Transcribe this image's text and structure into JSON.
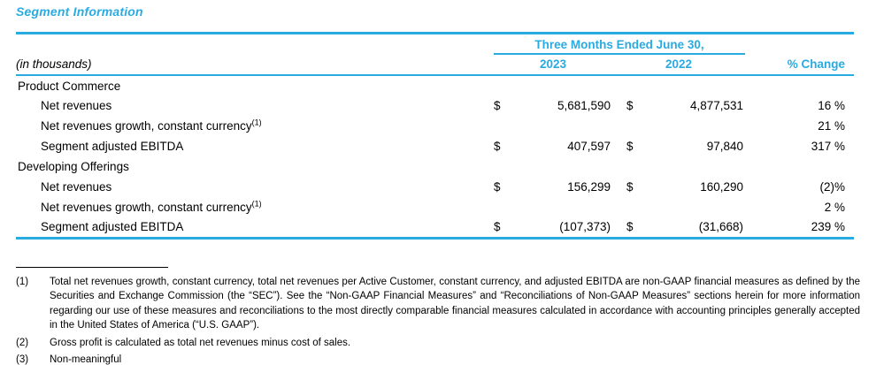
{
  "title": "Segment Information",
  "accent_color": "#29ABE2",
  "table": {
    "in_thousands": "(in thousands)",
    "period_header": "Three Months Ended June 30,",
    "columns": {
      "y2023": "2023",
      "y2022": "2022",
      "change": "% Change"
    },
    "rows": [
      {
        "type": "section",
        "label": "Product Commerce",
        "sup": "",
        "d1": "",
        "v1": "",
        "d2": "",
        "v2": "",
        "chg": ""
      },
      {
        "type": "data",
        "label": "Net revenues",
        "sup": "",
        "d1": "$",
        "v1": "5,681,590",
        "d2": "$",
        "v2": "4,877,531",
        "chg": "16 %"
      },
      {
        "type": "data",
        "label": "Net revenues growth, constant currency",
        "sup": "(1)",
        "d1": "",
        "v1": "",
        "d2": "",
        "v2": "",
        "chg": "21 %"
      },
      {
        "type": "data",
        "label": "Segment adjusted EBITDA",
        "sup": "",
        "d1": "$",
        "v1": "407,597",
        "d2": "$",
        "v2": "97,840",
        "chg": "317 %"
      },
      {
        "type": "section",
        "label": "Developing Offerings",
        "sup": "",
        "d1": "",
        "v1": "",
        "d2": "",
        "v2": "",
        "chg": ""
      },
      {
        "type": "data",
        "label": "Net revenues",
        "sup": "",
        "d1": "$",
        "v1": "156,299",
        "d2": "$",
        "v2": "160,290",
        "chg": "(2)%"
      },
      {
        "type": "data",
        "label": "Net revenues growth, constant currency",
        "sup": "(1)",
        "d1": "",
        "v1": "",
        "d2": "",
        "v2": "",
        "chg": "2 %"
      },
      {
        "type": "data",
        "label": "Segment adjusted EBITDA",
        "sup": "",
        "d1": "$",
        "v1": "(107,373)",
        "d2": "$",
        "v2": "(31,668)",
        "chg": "239 %"
      }
    ]
  },
  "footnotes": [
    {
      "num": "(1)",
      "text": "Total net revenues growth, constant currency, total net revenues per Active Customer, constant currency, and adjusted EBITDA are non-GAAP financial measures as defined by the Securities and Exchange Commission (the “SEC”). See the “Non-GAAP Financial Measures” and “Reconciliations of Non-GAAP Measures” sections herein for more information regarding our use of these measures and reconciliations to the most directly comparable financial measures calculated in accordance with accounting principles generally accepted in the United States of America (“U.S. GAAP”)."
    },
    {
      "num": "(2)",
      "text": "Gross profit is calculated as total net revenues minus cost of sales."
    },
    {
      "num": "(3)",
      "text": "Non-meaningful"
    }
  ]
}
